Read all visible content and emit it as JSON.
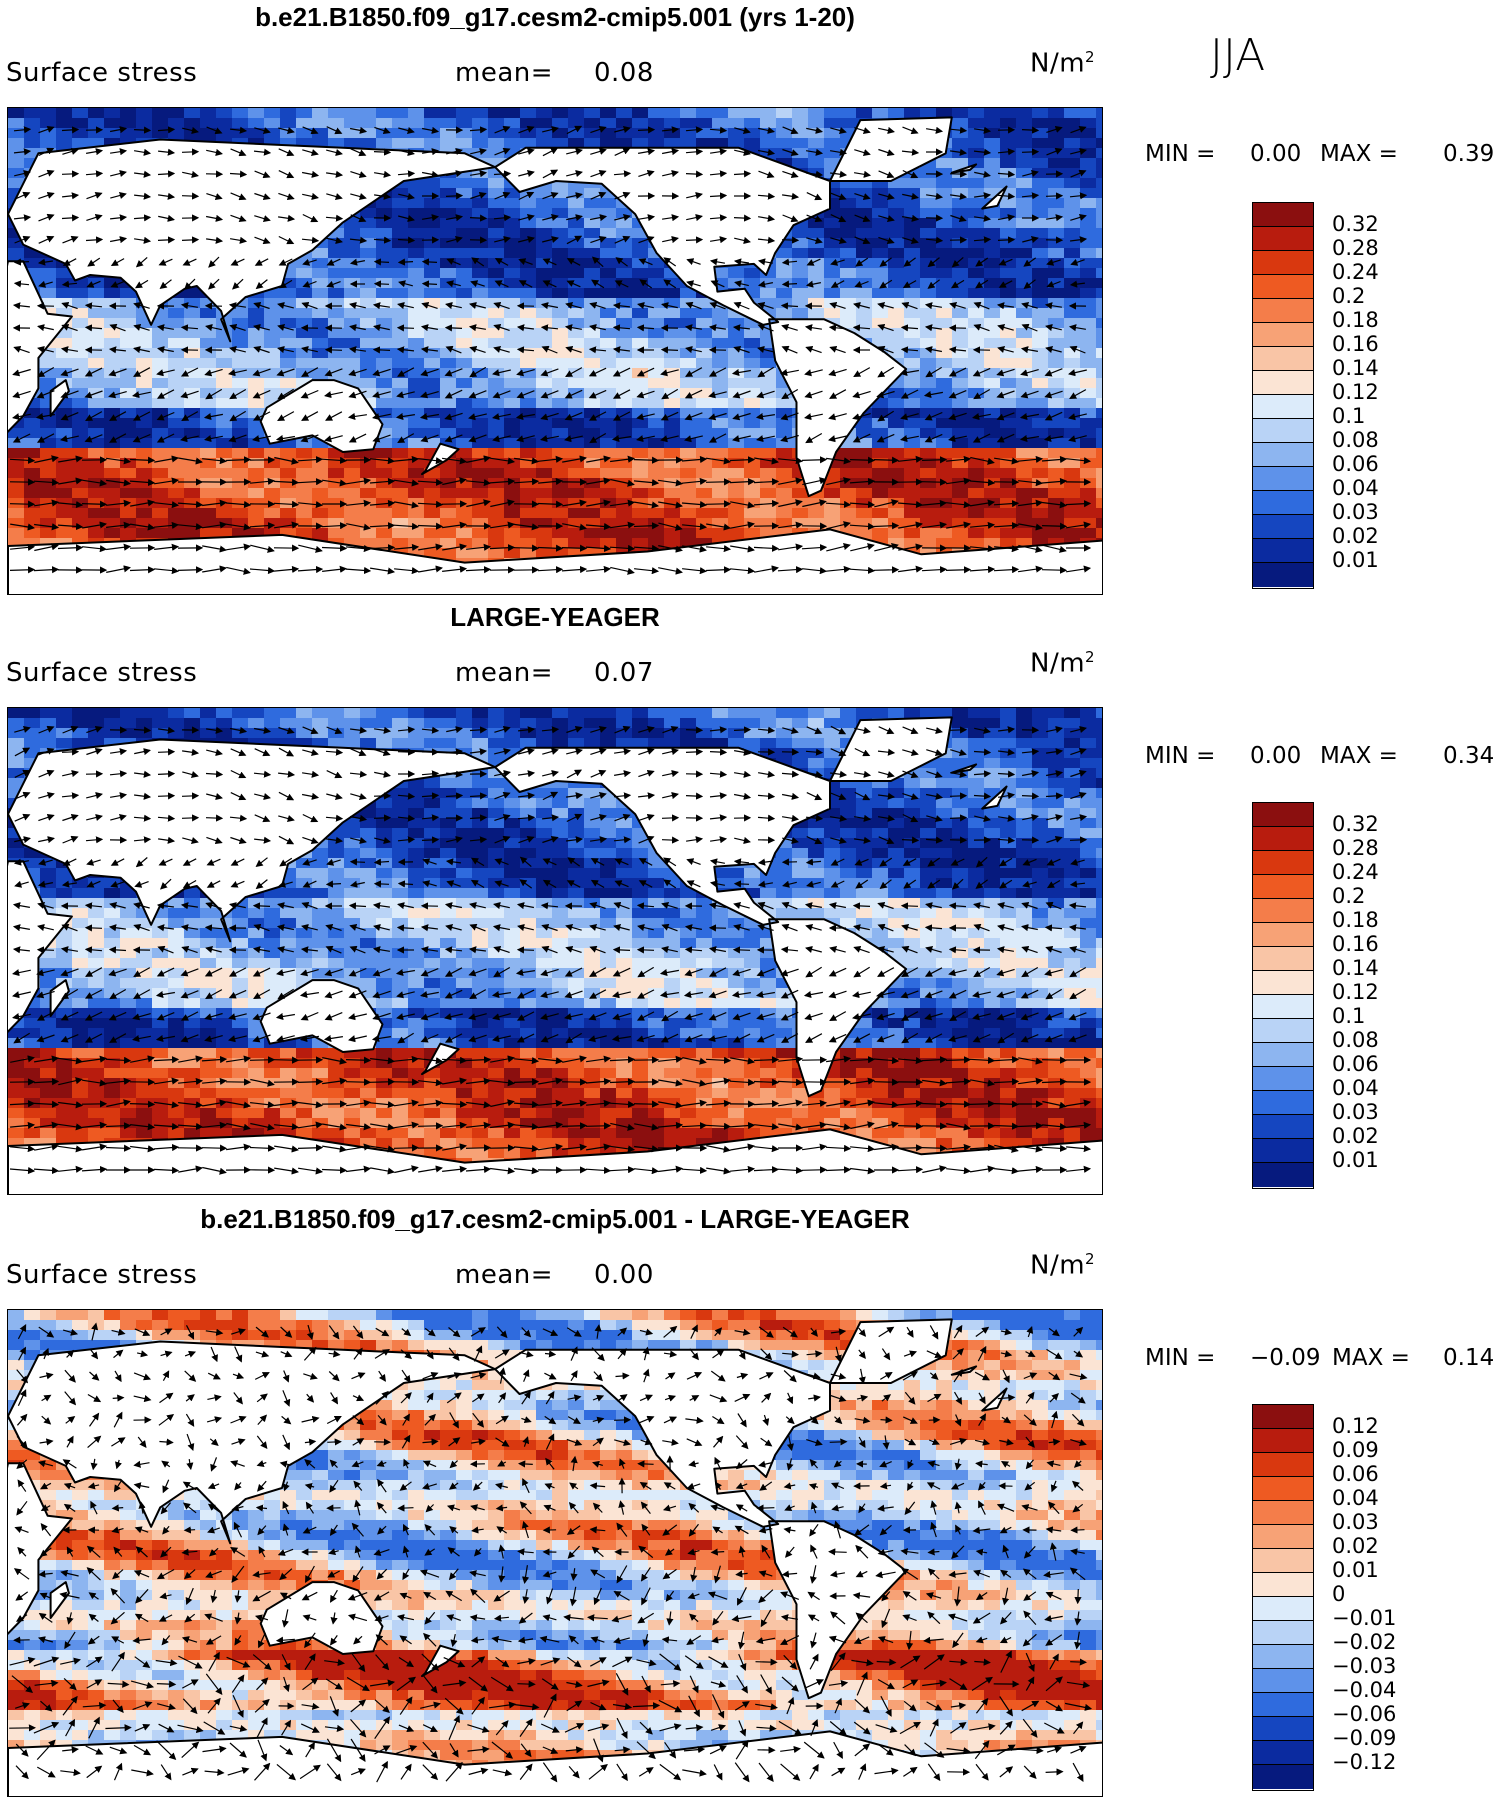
{
  "season": "JJA",
  "panels": [
    {
      "title": "b.e21.B1850.f09_g17.cesm2-cmip5.001 (yrs 1-20)",
      "variable": "Surface stress",
      "mean_label": "mean=",
      "mean_value": "0.08",
      "units": "N/m",
      "units_exp": "2",
      "min_label": "MIN =",
      "min_value": "0.00",
      "max_label": "MAX =",
      "max_value": "0.39",
      "colorbar_labels": [
        "0.32",
        "0.28",
        "0.24",
        "0.2",
        "0.18",
        "0.16",
        "0.14",
        "0.12",
        "0.1",
        "0.08",
        "0.06",
        "0.04",
        "0.03",
        "0.02",
        "0.01"
      ],
      "colorbar_colors": [
        "#8b0f0f",
        "#b81c0e",
        "#d9380f",
        "#ee5a22",
        "#f47d4a",
        "#f7a276",
        "#f9c5a6",
        "#fbe4d4",
        "#dcebfa",
        "#b9d3f6",
        "#8db5f0",
        "#5e92ea",
        "#2f6bde",
        "#1546c0",
        "#0b2ba0",
        "#061a7e"
      ],
      "field_palette": "positive",
      "field_seed": 11
    },
    {
      "title": "LARGE-YEAGER",
      "variable": "Surface stress",
      "mean_label": "mean=",
      "mean_value": "0.07",
      "units": "N/m",
      "units_exp": "2",
      "min_label": "MIN =",
      "min_value": "0.00",
      "max_label": "MAX =",
      "max_value": "0.34",
      "colorbar_labels": [
        "0.32",
        "0.28",
        "0.24",
        "0.2",
        "0.18",
        "0.16",
        "0.14",
        "0.12",
        "0.1",
        "0.08",
        "0.06",
        "0.04",
        "0.03",
        "0.02",
        "0.01"
      ],
      "colorbar_colors": [
        "#8b0f0f",
        "#b81c0e",
        "#d9380f",
        "#ee5a22",
        "#f47d4a",
        "#f7a276",
        "#f9c5a6",
        "#fbe4d4",
        "#dcebfa",
        "#b9d3f6",
        "#8db5f0",
        "#5e92ea",
        "#2f6bde",
        "#1546c0",
        "#0b2ba0",
        "#061a7e"
      ],
      "field_palette": "positive",
      "field_seed": 23
    },
    {
      "title": "b.e21.B1850.f09_g17.cesm2-cmip5.001 - LARGE-YEAGER",
      "variable": "Surface stress",
      "mean_label": "mean=",
      "mean_value": "0.00",
      "units": "N/m",
      "units_exp": "2",
      "min_label": "MIN =",
      "min_value": "−0.09",
      "max_label": "MAX =",
      "max_value": "0.14",
      "colorbar_labels": [
        "0.12",
        "0.09",
        "0.06",
        "0.04",
        "0.03",
        "0.02",
        "0.01",
        "0",
        "−0.01",
        "−0.02",
        "−0.03",
        "−0.04",
        "−0.06",
        "−0.09",
        "−0.12"
      ],
      "colorbar_colors": [
        "#8b0f0f",
        "#b81c0e",
        "#d9380f",
        "#ee5a22",
        "#f47d4a",
        "#f7a276",
        "#f9c5a6",
        "#fbe4d4",
        "#dcebfa",
        "#b9d3f6",
        "#8db5f0",
        "#5e92ea",
        "#2f6bde",
        "#1546c0",
        "#0b2ba0",
        "#061a7e"
      ],
      "field_palette": "difference",
      "field_seed": 37
    }
  ]
}
